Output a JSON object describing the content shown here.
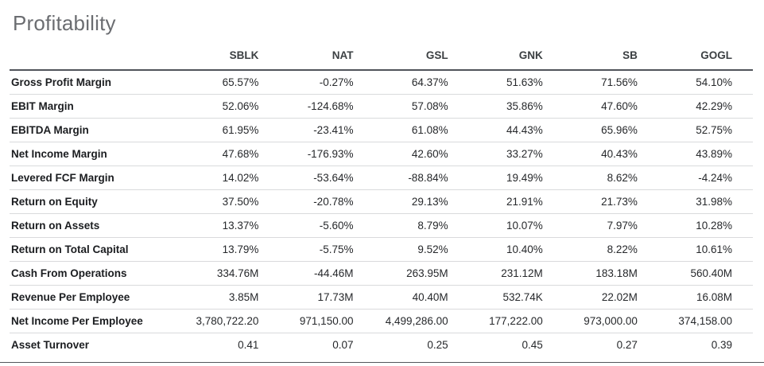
{
  "page": {
    "title": "Profitability"
  },
  "colors": {
    "title_text": "#6b6d71",
    "header_text": "#3c4043",
    "label_text": "#1b1d20",
    "value_text": "#26282b",
    "header_rule": "#50545a",
    "row_divider": "#d9dadc",
    "bottom_rule": "#53575c"
  },
  "table": {
    "columns": [
      "SBLK",
      "NAT",
      "GSL",
      "GNK",
      "SB",
      "GOGL"
    ],
    "rows": [
      {
        "label": "Gross Profit Margin",
        "values": [
          "65.57%",
          "-0.27%",
          "64.37%",
          "51.63%",
          "71.56%",
          "54.10%"
        ]
      },
      {
        "label": "EBIT Margin",
        "values": [
          "52.06%",
          "-124.68%",
          "57.08%",
          "35.86%",
          "47.60%",
          "42.29%"
        ]
      },
      {
        "label": "EBITDA Margin",
        "values": [
          "61.95%",
          "-23.41%",
          "61.08%",
          "44.43%",
          "65.96%",
          "52.75%"
        ]
      },
      {
        "label": "Net Income Margin",
        "values": [
          "47.68%",
          "-176.93%",
          "42.60%",
          "33.27%",
          "40.43%",
          "43.89%"
        ]
      },
      {
        "label": "Levered FCF Margin",
        "values": [
          "14.02%",
          "-53.64%",
          "-88.84%",
          "19.49%",
          "8.62%",
          "-4.24%"
        ]
      },
      {
        "label": "Return on Equity",
        "values": [
          "37.50%",
          "-20.78%",
          "29.13%",
          "21.91%",
          "21.73%",
          "31.98%"
        ]
      },
      {
        "label": "Return on Assets",
        "values": [
          "13.37%",
          "-5.60%",
          "8.79%",
          "10.07%",
          "7.97%",
          "10.28%"
        ]
      },
      {
        "label": "Return on Total Capital",
        "values": [
          "13.79%",
          "-5.75%",
          "9.52%",
          "10.40%",
          "8.22%",
          "10.61%"
        ]
      },
      {
        "label": "Cash From Operations",
        "values": [
          "334.76M",
          "-44.46M",
          "263.95M",
          "231.12M",
          "183.18M",
          "560.40M"
        ]
      },
      {
        "label": "Revenue Per Employee",
        "values": [
          "3.85M",
          "17.73M",
          "40.40M",
          "532.74K",
          "22.02M",
          "16.08M"
        ]
      },
      {
        "label": "Net Income Per Employee",
        "values": [
          "3,780,722.20",
          "971,150.00",
          "4,499,286.00",
          "177,222.00",
          "973,000.00",
          "374,158.00"
        ]
      },
      {
        "label": "Asset Turnover",
        "values": [
          "0.41",
          "0.07",
          "0.25",
          "0.45",
          "0.27",
          "0.39"
        ]
      }
    ]
  }
}
